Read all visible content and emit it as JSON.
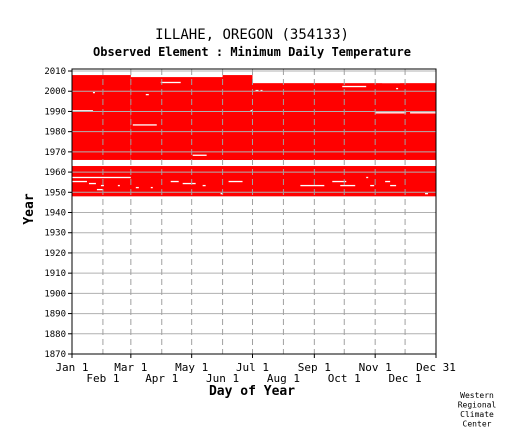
{
  "chart_data": {
    "type": "heatmap",
    "title": "ILLAHE, OREGON   (354133)",
    "subtitle": "Observed Element : Minimum Daily Temperature",
    "xlabel": "Day of Year",
    "ylabel": "Year",
    "xlim": [
      1,
      366
    ],
    "ylim": [
      1870,
      2011
    ],
    "grid": true,
    "x_ticks_upper": [
      {
        "label": "Jan 1",
        "day": 1
      },
      {
        "label": "Mar 1",
        "day": 60
      },
      {
        "label": "May 1",
        "day": 121
      },
      {
        "label": "Jul 1",
        "day": 182
      },
      {
        "label": "Sep 1",
        "day": 244
      },
      {
        "label": "Nov 1",
        "day": 305
      },
      {
        "label": "Dec 31",
        "day": 366
      }
    ],
    "x_ticks_lower": [
      {
        "label": "Feb 1",
        "day": 32
      },
      {
        "label": "Apr 1",
        "day": 91
      },
      {
        "label": "Jun 1",
        "day": 152
      },
      {
        "label": "Aug 1",
        "day": 213
      },
      {
        "label": "Oct 1",
        "day": 274
      },
      {
        "label": "Dec 1",
        "day": 335
      }
    ],
    "y_ticks": [
      1870,
      1880,
      1890,
      1900,
      1910,
      1920,
      1930,
      1940,
      1950,
      1960,
      1970,
      1980,
      1990,
      2000,
      2010
    ],
    "coverage_color": "#ff0000",
    "coverage_blocks": [
      {
        "day_start": 1,
        "day_end": 60,
        "year_start": 1966,
        "year_end": 2007
      },
      {
        "day_start": 60,
        "day_end": 182,
        "year_start": 1966,
        "year_end": 2006
      },
      {
        "day_start": 152,
        "day_end": 182,
        "year_start": 1966,
        "year_end": 2007
      },
      {
        "day_start": 182,
        "day_end": 366,
        "year_start": 1966,
        "year_end": 2003
      },
      {
        "day_start": 1,
        "day_end": 366,
        "year_start": 1948,
        "year_end": 1962
      }
    ],
    "gaps": [
      {
        "day_start": 1,
        "day_end": 22,
        "year": 1990
      },
      {
        "day_start": 22,
        "day_end": 24,
        "year": 1999
      },
      {
        "day_start": 62,
        "day_end": 86,
        "year": 1983
      },
      {
        "day_start": 75,
        "day_end": 78,
        "year": 1998
      },
      {
        "day_start": 90,
        "day_end": 110,
        "year": 2004
      },
      {
        "day_start": 122,
        "day_end": 136,
        "year": 1968
      },
      {
        "day_start": 185,
        "day_end": 188,
        "year": 2000
      },
      {
        "day_start": 190,
        "day_end": 192,
        "year": 2000
      },
      {
        "day_start": 180,
        "day_end": 182,
        "year": 1990
      },
      {
        "day_start": 272,
        "day_end": 296,
        "year": 2002
      },
      {
        "day_start": 312,
        "day_end": 330,
        "year": 2004
      },
      {
        "day_start": 326,
        "day_end": 328,
        "year": 2001
      },
      {
        "day_start": 305,
        "day_end": 336,
        "year": 1989
      },
      {
        "day_start": 340,
        "day_end": 366,
        "year": 1989
      },
      {
        "day_start": 315,
        "day_end": 317,
        "year": 1964
      },
      {
        "day_start": 1,
        "day_end": 60,
        "year": 1957
      },
      {
        "day_start": 1,
        "day_end": 16,
        "year": 1955
      },
      {
        "day_start": 18,
        "day_end": 25,
        "year": 1954
      },
      {
        "day_start": 30,
        "day_end": 33,
        "year": 1953
      },
      {
        "day_start": 26,
        "day_end": 32,
        "year": 1951
      },
      {
        "day_start": 47,
        "day_end": 49,
        "year": 1953
      },
      {
        "day_start": 65,
        "day_end": 68,
        "year": 1952
      },
      {
        "day_start": 80,
        "day_end": 82,
        "year": 1952
      },
      {
        "day_start": 100,
        "day_end": 108,
        "year": 1955
      },
      {
        "day_start": 112,
        "day_end": 125,
        "year": 1954
      },
      {
        "day_start": 132,
        "day_end": 135,
        "year": 1953
      },
      {
        "day_start": 150,
        "day_end": 152,
        "year": 1949
      },
      {
        "day_start": 158,
        "day_end": 172,
        "year": 1955
      },
      {
        "day_start": 230,
        "day_end": 254,
        "year": 1953
      },
      {
        "day_start": 262,
        "day_end": 276,
        "year": 1955
      },
      {
        "day_start": 270,
        "day_end": 285,
        "year": 1953
      },
      {
        "day_start": 300,
        "day_end": 304,
        "year": 1953
      },
      {
        "day_start": 315,
        "day_end": 320,
        "year": 1955
      },
      {
        "day_start": 320,
        "day_end": 326,
        "year": 1953
      },
      {
        "day_start": 355,
        "day_end": 358,
        "year": 1949
      },
      {
        "day_start": 296,
        "day_end": 298,
        "year": 1957
      }
    ]
  },
  "footer": {
    "credit_lines": [
      "Western",
      "Regional",
      "Climate",
      "Center"
    ]
  }
}
